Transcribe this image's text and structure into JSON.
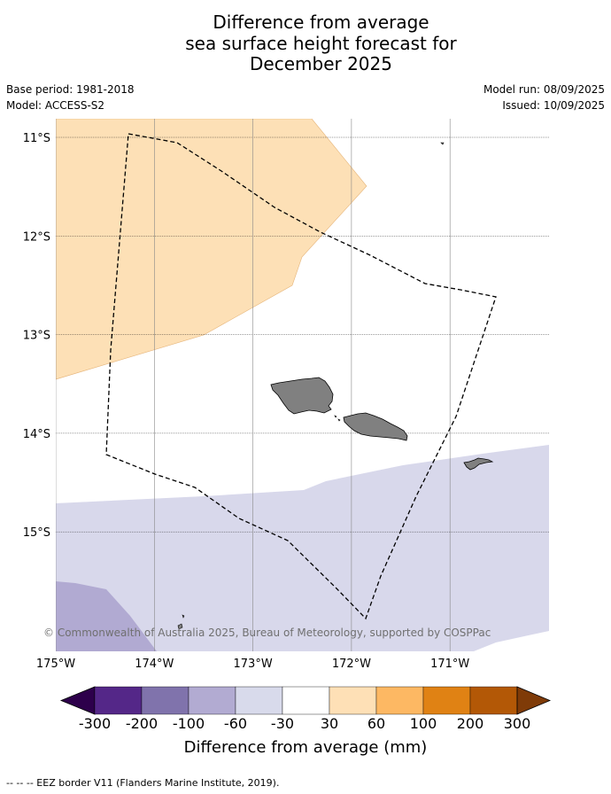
{
  "title": {
    "line1": "Difference from average",
    "line2": "sea surface height forecast for",
    "line3": "December 2025"
  },
  "meta": {
    "base_period": "Base period: 1981-2018",
    "model": "Model: ACCESS-S2",
    "model_run": "Model run: 08/09/2025",
    "issued": "Issued: 10/09/2025"
  },
  "map": {
    "lon_range": [
      -175,
      -170
    ],
    "lat_range": [
      -16.2,
      -10.8
    ],
    "lat_ticks": [
      {
        "value": -11,
        "label": "11°S"
      },
      {
        "value": -12,
        "label": "12°S"
      },
      {
        "value": -13,
        "label": "13°S"
      },
      {
        "value": -14,
        "label": "14°S"
      },
      {
        "value": -15,
        "label": "15°S"
      }
    ],
    "lon_ticks": [
      {
        "value": -175,
        "label": "175°W"
      },
      {
        "value": -174,
        "label": "174°W"
      },
      {
        "value": -173,
        "label": "173°W"
      },
      {
        "value": -172,
        "label": "172°W"
      },
      {
        "value": -171,
        "label": "171°W"
      }
    ],
    "copyright": "© Commonwealth of Australia 2025, Bureau of Meteorology, supported by COSPPac",
    "colors": {
      "land": "#808080",
      "positive_30_60": "#fde0b6",
      "negative_60_30": "#d8d8eb",
      "negative_100_60": "#b1aad2"
    }
  },
  "colorbar": {
    "labels": [
      "-300",
      "-200",
      "-100",
      "-60",
      "-30",
      "30",
      "60",
      "100",
      "200",
      "300"
    ],
    "colors": [
      "#2d004b",
      "#542788",
      "#8073ac",
      "#b2abd2",
      "#d8daeb",
      "#ffffff",
      "#fee0b6",
      "#fdb863",
      "#e08214",
      "#b35806",
      "#7f3b08"
    ],
    "title": "Difference from average (mm)"
  },
  "legend": {
    "eez": "--  --  -- EEZ border V11 (Flanders Marine Institute, 2019)."
  }
}
